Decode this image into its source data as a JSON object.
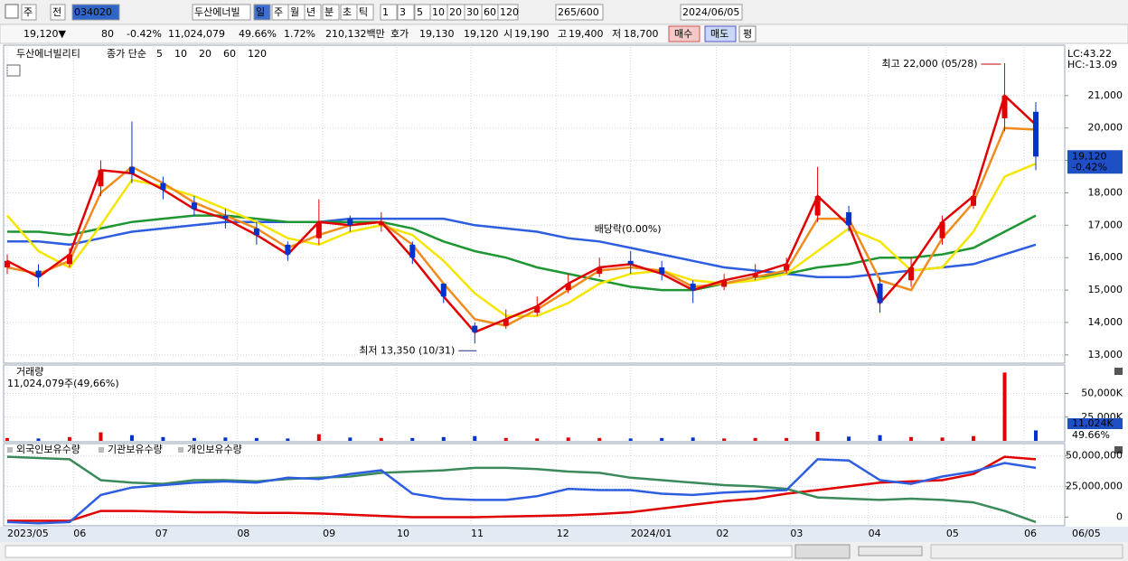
{
  "toolbar": [
    "주",
    "전",
    "034020",
    "두산에너빌",
    "일",
    "주",
    "월",
    "년",
    "분",
    "초",
    "틱",
    "1",
    "3",
    "5",
    "10",
    "20",
    "30",
    "60",
    "120",
    "265/600",
    "2024/06/05"
  ],
  "infobar": [
    "19,120▼",
    "80",
    "-0.42%",
    "11,024,079",
    "49.66%",
    "1.72%",
    "210,132백만",
    "호가",
    "19,130",
    "19,120",
    "시",
    "19,190",
    "고",
    "19,400",
    "저",
    "18,700",
    "매수",
    "매도",
    "평"
  ],
  "chart_data": [
    {
      "type": "candlestick",
      "title": "두산에너빌리티",
      "legend_label": "종가 단순",
      "right_labels": [
        "LC:43.22",
        "HC:-13.09"
      ],
      "current": {
        "value": 19120,
        "label": "19,120",
        "change": "-0.42%"
      },
      "annotations": [
        "최고 22,000 (05/28)",
        "최저 13,350 (10/31)",
        "배당락(0.00%)"
      ],
      "x": [
        0,
        8,
        16,
        24,
        32,
        40,
        48,
        56,
        64,
        72,
        80,
        88,
        96,
        104,
        112,
        120,
        128,
        136,
        144,
        152,
        160,
        168,
        176,
        184,
        192,
        200,
        208,
        216,
        224,
        232,
        240,
        248,
        256,
        264
      ],
      "open": [
        15700,
        15600,
        15800,
        18200,
        18800,
        18300,
        17700,
        17300,
        16900,
        16400,
        16600,
        17200,
        17000,
        16400,
        15200,
        13900,
        13900,
        14300,
        15000,
        15500,
        15900,
        15700,
        15200,
        15100,
        15400,
        15600,
        17300,
        17400,
        15200,
        15300,
        16600,
        17600,
        20300,
        20500
      ],
      "high": [
        16100,
        15800,
        16300,
        19000,
        20200,
        18500,
        17900,
        17500,
        17100,
        16500,
        17800,
        17300,
        17400,
        16500,
        15200,
        14000,
        14400,
        14800,
        15500,
        16000,
        16200,
        15900,
        15300,
        15500,
        15800,
        16000,
        18800,
        17600,
        15400,
        16000,
        17300,
        18100,
        22000,
        20800
      ],
      "low": [
        15500,
        15100,
        15700,
        17900,
        18300,
        17800,
        17300,
        16900,
        16400,
        15900,
        16400,
        16800,
        16800,
        15800,
        14600,
        13350,
        13800,
        14200,
        14900,
        15400,
        15500,
        15300,
        14600,
        15000,
        15300,
        15500,
        17100,
        16800,
        14300,
        15100,
        16400,
        17500,
        19900,
        18700
      ],
      "close": [
        15900,
        15400,
        16100,
        18700,
        18600,
        18100,
        17500,
        17200,
        16700,
        16100,
        17100,
        17000,
        17100,
        16000,
        14800,
        13700,
        14100,
        14500,
        15200,
        15700,
        15800,
        15500,
        15000,
        15300,
        15500,
        15800,
        17900,
        17000,
        14600,
        15700,
        17100,
        17900,
        21000,
        19120
      ],
      "up_color": "#e00000",
      "down_color": "#0033cc",
      "series": [
        {
          "name": "5",
          "color": "#e00000",
          "values": [
            15900,
            15400,
            16100,
            18700,
            18600,
            18100,
            17500,
            17200,
            16700,
            16100,
            17100,
            17000,
            17100,
            16000,
            14800,
            13700,
            14100,
            14500,
            15200,
            15700,
            15800,
            15500,
            15000,
            15300,
            15500,
            15800,
            17900,
            17000,
            14600,
            15700,
            17100,
            17900,
            21000,
            20100
          ]
        },
        {
          "name": "10",
          "color": "#f08c1e",
          "values": [
            15700,
            15500,
            15900,
            18000,
            18800,
            18300,
            17700,
            17300,
            16900,
            16300,
            16700,
            17000,
            17100,
            16400,
            15200,
            14100,
            13900,
            14400,
            15000,
            15600,
            15700,
            15600,
            15100,
            15200,
            15400,
            15600,
            17200,
            17200,
            15300,
            15000,
            16600,
            17700,
            20000,
            19950
          ]
        },
        {
          "name": "20",
          "color": "#f5e600",
          "values": [
            17300,
            16200,
            15700,
            17000,
            18400,
            18200,
            17900,
            17500,
            17100,
            16600,
            16400,
            16800,
            17000,
            16700,
            15900,
            14900,
            14200,
            14200,
            14600,
            15200,
            15500,
            15600,
            15300,
            15200,
            15300,
            15500,
            16200,
            16900,
            16500,
            15600,
            15700,
            16800,
            18500,
            18900
          ]
        },
        {
          "name": "60",
          "color": "#1e9632",
          "values": [
            16800,
            16800,
            16700,
            16900,
            17100,
            17200,
            17300,
            17300,
            17200,
            17100,
            17100,
            17100,
            17100,
            16900,
            16500,
            16200,
            16000,
            15700,
            15500,
            15300,
            15100,
            15000,
            15000,
            15200,
            15400,
            15500,
            15700,
            15800,
            16000,
            16000,
            16100,
            16300,
            16800,
            17300
          ]
        },
        {
          "name": "120",
          "color": "#2e5ee0",
          "values": [
            16500,
            16500,
            16400,
            16600,
            16800,
            16900,
            17000,
            17100,
            17100,
            17100,
            17100,
            17200,
            17200,
            17200,
            17200,
            17000,
            16900,
            16800,
            16600,
            16500,
            16300,
            16100,
            15900,
            15700,
            15600,
            15500,
            15400,
            15400,
            15500,
            15600,
            15700,
            15800,
            16100,
            16400
          ]
        }
      ],
      "ylim": [
        12800,
        22500
      ],
      "yticks": [
        {
          "value": 13000,
          "label": "13,000"
        },
        {
          "value": 14000,
          "label": "14,000"
        },
        {
          "value": 15000,
          "label": "15,000"
        },
        {
          "value": 16000,
          "label": "16,000"
        },
        {
          "value": 17000,
          "label": "17,000"
        },
        {
          "value": 18000,
          "label": "18,000"
        },
        {
          "value": 19000,
          "label": "19,000"
        },
        {
          "value": 20000,
          "label": "20,000"
        },
        {
          "value": 21000,
          "label": "21,000"
        }
      ],
      "xlim": [
        0,
        264
      ],
      "xticks": [
        {
          "value": 0,
          "label": "2023/05"
        },
        {
          "value": 17,
          "label": "06"
        },
        {
          "value": 38,
          "label": "07"
        },
        {
          "value": 59,
          "label": "08"
        },
        {
          "value": 81,
          "label": "09"
        },
        {
          "value": 100,
          "label": "10"
        },
        {
          "value": 119,
          "label": "11"
        },
        {
          "value": 141,
          "label": "12"
        },
        {
          "value": 160,
          "label": "2024/01"
        },
        {
          "value": 182,
          "label": "02"
        },
        {
          "value": 201,
          "label": "03"
        },
        {
          "value": 221,
          "label": "04"
        },
        {
          "value": 241,
          "label": "05"
        },
        {
          "value": 261,
          "label": "06"
        }
      ],
      "x_end_label": "06/05",
      "grid": true
    },
    {
      "type": "bar",
      "title": "거래량",
      "subtitle": "11,024,079주(49,66%)",
      "current": {
        "label": "11,024K",
        "pct": "49.66%"
      },
      "values": [
        3000,
        2500,
        4000,
        9000,
        6000,
        4000,
        3000,
        3500,
        3000,
        2500,
        7000,
        3500,
        3000,
        3000,
        4000,
        5000,
        3000,
        2500,
        3500,
        3000,
        2500,
        3000,
        3500,
        2500,
        3000,
        3000,
        9500,
        4500,
        6000,
        4000,
        3500,
        5000,
        72000,
        11024
      ],
      "ylim": [
        0,
        80000
      ],
      "yticks": [
        {
          "value": 25000,
          "label": "25,000K"
        },
        {
          "value": 50000,
          "label": "50,000K"
        }
      ],
      "grid": true
    },
    {
      "type": "line",
      "series": [
        {
          "name": "외국인보유수량",
          "color": "#e00000",
          "values": [
            -3000000,
            -3000000,
            -3000000,
            5000000,
            5000000,
            4500000,
            4000000,
            4000000,
            3500000,
            3500000,
            3000000,
            2000000,
            1000000,
            0,
            0,
            0,
            500000,
            1000000,
            1500000,
            2500000,
            4000000,
            7000000,
            10000000,
            13000000,
            15000000,
            19000000,
            22000000,
            25000000,
            28000000,
            29000000,
            30000000,
            35000000,
            49000000,
            47000000
          ]
        },
        {
          "name": "기관보유수량",
          "color": "#3a8a5a",
          "values": [
            49000000,
            48000000,
            47000000,
            30000000,
            28000000,
            27000000,
            30000000,
            30000000,
            29000000,
            31000000,
            32000000,
            33000000,
            36000000,
            37000000,
            38000000,
            40000000,
            40000000,
            39000000,
            37000000,
            36000000,
            32000000,
            30000000,
            28000000,
            26000000,
            25000000,
            23000000,
            16000000,
            15000000,
            14000000,
            15000000,
            14000000,
            12000000,
            5000000,
            -4000000
          ]
        },
        {
          "name": "개인보유수량",
          "color": "#2e5ee0",
          "values": [
            -4000000,
            -5000000,
            -4000000,
            18000000,
            24000000,
            26000000,
            28000000,
            29000000,
            28000000,
            32000000,
            31000000,
            35000000,
            38000000,
            19000000,
            15000000,
            14000000,
            14000000,
            17000000,
            23000000,
            22000000,
            22000000,
            19000000,
            18000000,
            20000000,
            21000000,
            22000000,
            47000000,
            46000000,
            30000000,
            27000000,
            33000000,
            37000000,
            44000000,
            40000000
          ]
        }
      ],
      "ylim": [
        -7000000,
        59000000
      ],
      "yticks": [
        0,
        {
          "value": 25000000,
          "label": "25,000,000"
        },
        {
          "value": 50000000,
          "label": "50,000,000"
        }
      ],
      "grid": true
    }
  ]
}
